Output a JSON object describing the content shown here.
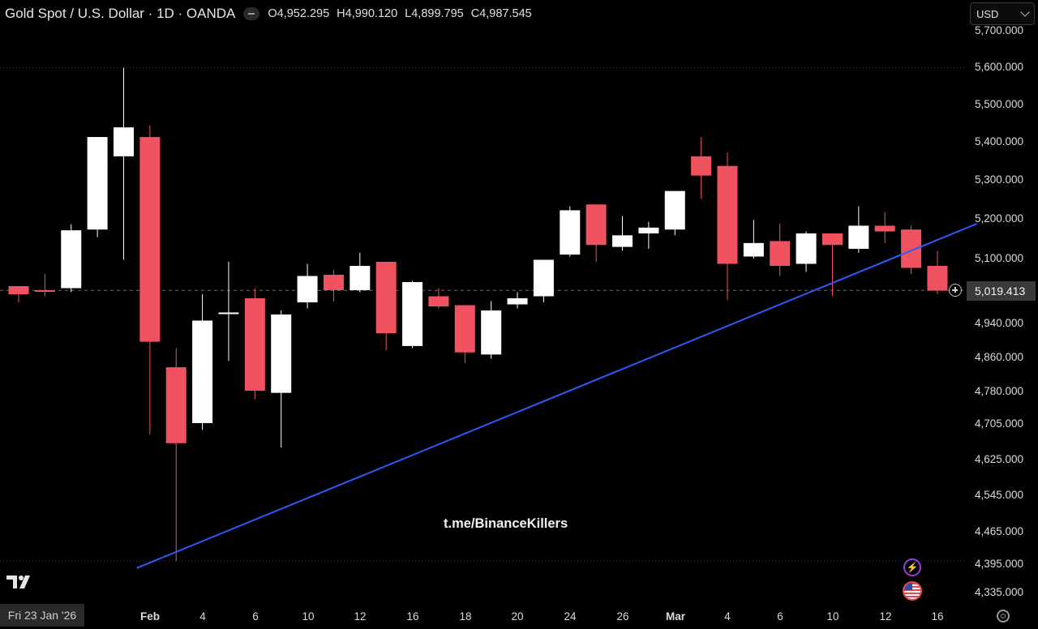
{
  "header": {
    "title": "Gold Spot / U.S. Dollar · 1D · OANDA",
    "open": "O4,952.295",
    "high": "H4,990.120",
    "low": "L4,899.795",
    "close": "C4,987.545"
  },
  "currency_select": {
    "value": "USD"
  },
  "crosshair_date": "Fri 23 Jan '26",
  "watermark": "t.me/BinanceKillers",
  "last_price_label": "5,019.413",
  "icons": [
    "tradingview-logo-icon",
    "add-alert-icon",
    "flash-icon",
    "us-flag-icon",
    "settings-gear-icon"
  ],
  "colors": {
    "up": "#ffffff",
    "down": "#f0525f",
    "trendline": "#2f5af5",
    "background": "#000000"
  },
  "chart_data": {
    "type": "candlestick",
    "symbol": "Gold Spot / U.S. Dollar",
    "interval": "1D",
    "y_ticks": [
      "5,700.000",
      "5,600.000",
      "5,500.000",
      "5,400.000",
      "5,300.000",
      "5,200.000",
      "5,100.000",
      "4,940.000",
      "4,860.000",
      "4,780.000",
      "4,705.000",
      "4,625.000",
      "4,545.000",
      "4,465.000",
      "4,395.000",
      "4,335.000"
    ],
    "x_ticks": [
      "Feb",
      "4",
      "6",
      "10",
      "12",
      "16",
      "18",
      "20",
      "24",
      "26",
      "Mar",
      "4",
      "6",
      "10",
      "12",
      "16"
    ],
    "candles": [
      {
        "o": 5030,
        "h": 5030,
        "l": 4990,
        "c": 5010
      },
      {
        "o": 5020,
        "h": 5060,
        "l": 5005,
        "c": 5016
      },
      {
        "o": 5025,
        "h": 5194,
        "l": 5015,
        "c": 5178
      },
      {
        "o": 5180,
        "h": 5420,
        "l": 5160,
        "c": 5420
      },
      {
        "o": 5370,
        "h": 5600,
        "l": 5095,
        "c": 5445
      },
      {
        "o": 5420,
        "h": 5450,
        "l": 4680,
        "c": 4895
      },
      {
        "o": 4835,
        "h": 4880,
        "l": 4400,
        "c": 4660
      },
      {
        "o": 4705,
        "h": 5010,
        "l": 4690,
        "c": 4945
      },
      {
        "o": 4963,
        "h": 5090,
        "l": 4850,
        "c": 4965
      },
      {
        "o": 5000,
        "h": 5025,
        "l": 4760,
        "c": 4780
      },
      {
        "o": 4775,
        "h": 4970,
        "l": 4650,
        "c": 4960
      },
      {
        "o": 4990,
        "h": 5085,
        "l": 4975,
        "c": 5055
      },
      {
        "o": 5058,
        "h": 5070,
        "l": 4992,
        "c": 5020
      },
      {
        "o": 5020,
        "h": 5120,
        "l": 5015,
        "c": 5080
      },
      {
        "o": 5090,
        "h": 5090,
        "l": 4875,
        "c": 4915
      },
      {
        "o": 4885,
        "h": 5043,
        "l": 4880,
        "c": 5040
      },
      {
        "o": 5005,
        "h": 5025,
        "l": 4975,
        "c": 4980
      },
      {
        "o": 4983,
        "h": 4983,
        "l": 4845,
        "c": 4870
      },
      {
        "o": 4865,
        "h": 4993,
        "l": 4855,
        "c": 4970
      },
      {
        "o": 4985,
        "h": 5015,
        "l": 4975,
        "c": 5000
      },
      {
        "o": 5005,
        "h": 5100,
        "l": 4990,
        "c": 5095
      },
      {
        "o": 5115,
        "h": 5240,
        "l": 5110,
        "c": 5230
      },
      {
        "o": 5245,
        "h": 5245,
        "l": 5090,
        "c": 5140
      },
      {
        "o": 5135,
        "h": 5215,
        "l": 5125,
        "c": 5165
      },
      {
        "o": 5170,
        "h": 5200,
        "l": 5130,
        "c": 5185
      },
      {
        "o": 5180,
        "h": 5280,
        "l": 5165,
        "c": 5280
      },
      {
        "o": 5370,
        "h": 5420,
        "l": 5260,
        "c": 5320
      },
      {
        "o": 5345,
        "h": 5380,
        "l": 4995,
        "c": 5085
      },
      {
        "o": 5110,
        "h": 5205,
        "l": 5105,
        "c": 5145
      },
      {
        "o": 5150,
        "h": 5195,
        "l": 5055,
        "c": 5080
      },
      {
        "o": 5085,
        "h": 5175,
        "l": 5065,
        "c": 5170
      },
      {
        "o": 5170,
        "h": 5170,
        "l": 5005,
        "c": 5140
      },
      {
        "o": 5130,
        "h": 5240,
        "l": 5120,
        "c": 5190
      },
      {
        "o": 5190,
        "h": 5225,
        "l": 5145,
        "c": 5175
      },
      {
        "o": 5180,
        "h": 5190,
        "l": 5060,
        "c": 5075
      },
      {
        "o": 5080,
        "h": 5125,
        "l": 5010,
        "c": 5019
      }
    ],
    "trendline": [
      {
        "x": 4.5,
        "y": 4385
      },
      {
        "x": 36.5,
        "y": 5195
      }
    ],
    "reference_lines": [
      {
        "y": 5600,
        "style": "dotted"
      },
      {
        "y": 5019.413,
        "style": "dashed",
        "label": "5,019.413"
      },
      {
        "y": 4400,
        "style": "dotted"
      }
    ]
  }
}
